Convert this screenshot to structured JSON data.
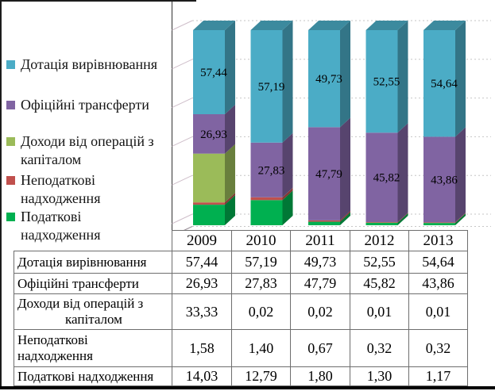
{
  "chart_data": {
    "type": "bar",
    "subtype": "3d-100-percent-stacked-column",
    "title": "",
    "xlabel": "",
    "ylabel": "",
    "categories": [
      "2009",
      "2010",
      "2011",
      "2012",
      "2013"
    ],
    "series": [
      {
        "name": "Дотація вирівнювання",
        "color": "#4BACC6",
        "values": [
          57.44,
          57.19,
          49.73,
          52.55,
          54.64
        ],
        "bar_labels": [
          "57,44",
          "57,19",
          "49,73",
          "52,55",
          "54,64"
        ]
      },
      {
        "name": "Офіційні трансферти",
        "color": "#8064A2",
        "values": [
          26.93,
          27.83,
          47.79,
          45.82,
          43.86
        ],
        "bar_labels": [
          "26,93",
          "27,83",
          "47,79",
          "45,82",
          "43,86"
        ]
      },
      {
        "name": "Доходи від операцій з капіталом",
        "color": "#9BBB59",
        "values": [
          33.33,
          0.02,
          0.02,
          0.01,
          0.01
        ]
      },
      {
        "name": "Неподаткові надходження",
        "color": "#C0504D",
        "values": [
          1.58,
          1.4,
          0.67,
          0.32,
          0.32
        ]
      },
      {
        "name": "Податкові надходження",
        "color": "#00B050",
        "values": [
          14.03,
          12.79,
          1.8,
          1.3,
          1.17
        ]
      }
    ],
    "stack_order_bottom_to_top": [
      "Податкові надходження",
      "Неподаткові надходження",
      "Доходи від операцій з капіталом",
      "Офіційні трансферти",
      "Дотація вирівнювання"
    ],
    "legend_position": "left",
    "grid": true,
    "value_axis_range": [
      0,
      100
    ]
  },
  "legend": {
    "items": [
      {
        "lines": [
          "Дотація вирівнювання"
        ],
        "color": "#4BACC6"
      },
      {
        "lines": [
          "Офіційні трансферти"
        ],
        "color": "#8064A2"
      },
      {
        "lines": [
          "Доходи від операцій з",
          "капіталом"
        ],
        "color": "#9BBB59"
      },
      {
        "lines": [
          "Неподаткові",
          "надходження"
        ],
        "color": "#C0504D"
      },
      {
        "lines": [
          "Податкові",
          "надходження"
        ],
        "color": "#00B050"
      }
    ]
  },
  "table": {
    "year_headers": [
      "2009",
      "2010",
      "2011",
      "2012",
      "2013"
    ],
    "rows": [
      {
        "label_lines": [
          "Дотація вирівнювання"
        ],
        "values": [
          "57,44",
          "57,19",
          "49,73",
          "52,55",
          "54,64"
        ]
      },
      {
        "label_lines": [
          "Офіційні трансферти"
        ],
        "values": [
          "26,93",
          "27,83",
          "47,79",
          "45,82",
          "43,86"
        ]
      },
      {
        "label_lines": [
          "Доходи від операцій з",
          "капіталом"
        ],
        "values": [
          "33,33",
          "0,02",
          "0,02",
          "0,01",
          "0,01"
        ]
      },
      {
        "label_lines": [
          "Неподаткові",
          "надходження"
        ],
        "values": [
          "1,58",
          "1,40",
          "0,67",
          "0,32",
          "0,32"
        ]
      },
      {
        "label_lines": [
          "Податкові надходження"
        ],
        "values": [
          "14,03",
          "12,79",
          "1,80",
          "1,30",
          "1,17"
        ]
      }
    ]
  },
  "colors": {
    "gridline": "#c6c6c6",
    "axis": "#333333",
    "wall_tick": "#cfbfca",
    "table_border": "#6e6e6e",
    "bar_label_text": "#000000"
  }
}
